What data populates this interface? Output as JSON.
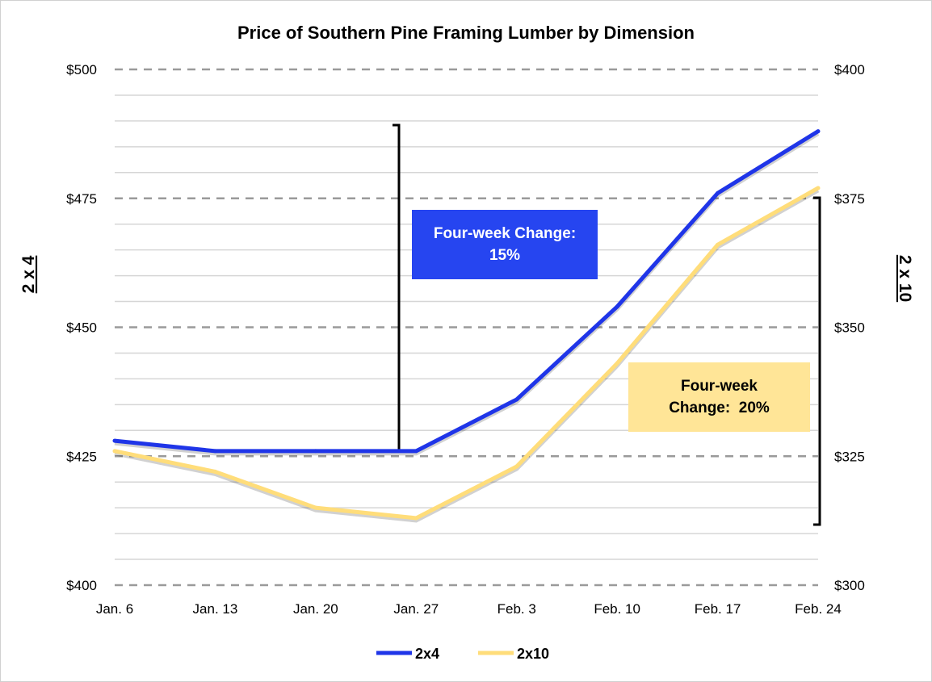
{
  "chart_data": {
    "type": "line",
    "title": "Price of Southern Pine Framing Lumber by Dimension",
    "categories": [
      "Jan. 6",
      "Jan. 13",
      "Jan. 20",
      "Jan. 27",
      "Feb. 3",
      "Feb. 10",
      "Feb. 17",
      "Feb. 24"
    ],
    "left_axis": {
      "label": "2 x 4",
      "ylim": [
        400,
        500
      ],
      "ticks": [
        "$400",
        "$425",
        "$450",
        "$475",
        "$500"
      ],
      "tick_values": [
        400,
        425,
        450,
        475,
        500
      ]
    },
    "right_axis": {
      "label": "2 x 10",
      "ylim": [
        300,
        400
      ],
      "ticks": [
        "$300",
        "$325",
        "$350",
        "$375",
        "$400"
      ],
      "tick_values": [
        300,
        325,
        350,
        375,
        400
      ]
    },
    "grid": true,
    "legend_position": "bottom",
    "series": [
      {
        "name": "2x4",
        "axis": "left",
        "color": "#1F35E8",
        "values": [
          428,
          426,
          426,
          426,
          436,
          454,
          476,
          488
        ]
      },
      {
        "name": "2x10",
        "axis": "right",
        "color": "#FFDD7A",
        "values": [
          326,
          322,
          315,
          313,
          323,
          343,
          366,
          377
        ]
      }
    ],
    "annotations": [
      {
        "text_line1": "Four-week Change:",
        "text_line2": "15%",
        "color": "#2645F0",
        "text_color": "#FFFFFF"
      },
      {
        "text_line1": "Four-week",
        "text_line2": "Change:  20%",
        "color": "#FFE597",
        "text_color": "#000000"
      }
    ]
  }
}
